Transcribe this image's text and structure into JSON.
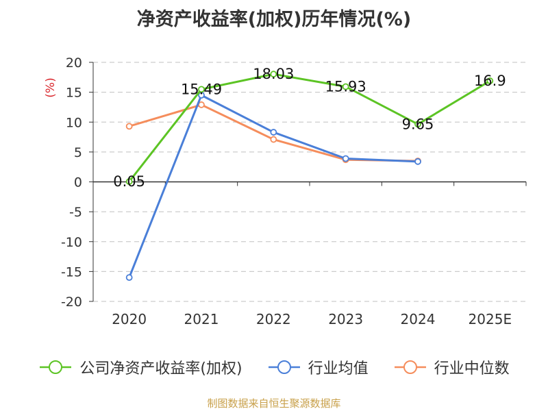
{
  "chart_data": {
    "type": "line",
    "title": "净资产收益率(加权)历年情况(%)",
    "ylabel": "(%)",
    "xlabel": "",
    "categories": [
      "2020",
      "2021",
      "2022",
      "2023",
      "2024",
      "2025E"
    ],
    "ylim": [
      -20,
      20
    ],
    "yticks": [
      20,
      15,
      10,
      5,
      0,
      -5,
      -10,
      -15,
      -20
    ],
    "grid": true,
    "legend_position": "bottom",
    "series": [
      {
        "name": "公司净资产收益率(加权)",
        "color": "#5cc424",
        "values": [
          0.05,
          15.49,
          18.03,
          15.93,
          9.65,
          16.9
        ],
        "labels": [
          "0.05",
          "15.49",
          "18.03",
          "15.93",
          "9.65",
          "16.9"
        ]
      },
      {
        "name": "行业均值",
        "color": "#4a7fd8",
        "values": [
          -16.0,
          14.5,
          8.3,
          3.9,
          3.4,
          null
        ]
      },
      {
        "name": "行业中位数",
        "color": "#f58d5c",
        "values": [
          9.3,
          12.9,
          7.1,
          3.7,
          3.5,
          null
        ]
      }
    ]
  },
  "source_note": "制图数据来自恒生聚源数据库"
}
